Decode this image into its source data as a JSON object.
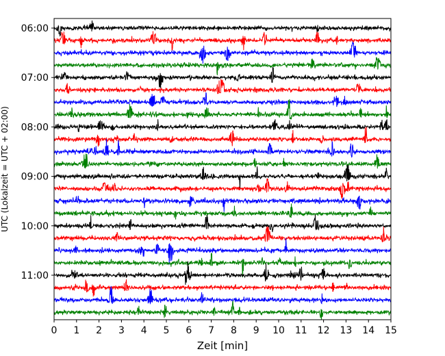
{
  "chart_data": {
    "type": "line",
    "title": "",
    "xlabel": "Zeit  [min]",
    "ylabel": "UTC (Lokalzeit = UTC + 02:00)",
    "xlim": [
      0,
      15
    ],
    "x_ticks": [
      "0",
      "1",
      "2",
      "3",
      "4",
      "5",
      "6",
      "7",
      "8",
      "9",
      "10",
      "11",
      "12",
      "13",
      "14",
      "15"
    ],
    "y_ticks": [
      "06:00",
      "07:00",
      "08:00",
      "09:00",
      "10:00",
      "11:00"
    ],
    "trace_start_utc": "06:00",
    "trace_interval_min": 15,
    "trace_count": 24,
    "trace_colors": [
      "#000000",
      "#ff0000",
      "#0000ff",
      "#008000"
    ],
    "grid": false,
    "legend": "none"
  }
}
